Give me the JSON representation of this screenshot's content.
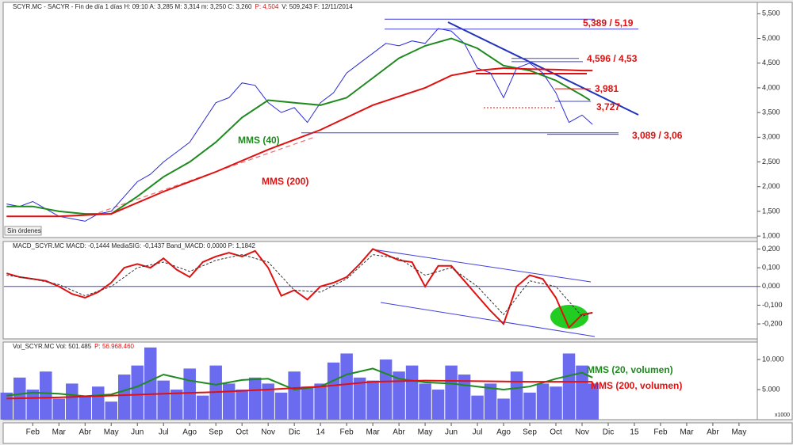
{
  "chart_data": [
    {
      "type": "line",
      "info": "SCYR.MC - SACYR - Fin de día 1 días H: 09:10 A: 3,285 M: 3,314 m: 3,250 C: 3,260",
      "info_red": "P: 4,504",
      "info_end": "V: 509,243 F: 12/11/2014",
      "status": "Sin órdenes",
      "xlim": [
        -0.1,
        28.7
      ],
      "ylim": [
        0.97,
        5.73
      ],
      "yticks": [
        {
          "value": 1,
          "label": "1,000"
        },
        {
          "value": 1.5,
          "label": "1,500"
        },
        {
          "value": 2,
          "label": "2,000"
        },
        {
          "value": 2.5,
          "label": "2,500"
        },
        {
          "value": 3,
          "label": "3,000"
        },
        {
          "value": 3.5,
          "label": "3,500"
        },
        {
          "value": 4,
          "label": "4,000"
        },
        {
          "value": 4.5,
          "label": "4,500"
        },
        {
          "value": 5,
          "label": "5,000"
        },
        {
          "value": 5.5,
          "label": "5,500"
        }
      ],
      "series": [
        {
          "color": "#2b2bd6",
          "x": [
            0,
            0.5,
            1,
            1.5,
            2,
            2.5,
            3,
            3.5,
            4,
            4.5,
            5,
            5.5,
            6,
            6.5,
            7,
            7.5,
            8,
            8.5,
            9,
            9.5,
            10,
            10.5,
            11,
            11.5,
            12,
            12.5,
            13,
            13.5,
            14,
            14.5,
            15,
            15.5,
            16,
            16.5,
            17,
            17.5,
            18,
            18.5,
            19,
            19.5,
            20,
            20.5,
            21,
            21.5,
            22,
            22.4
          ],
          "values": [
            1.65,
            1.6,
            1.7,
            1.55,
            1.4,
            1.35,
            1.3,
            1.45,
            1.5,
            1.8,
            2.1,
            2.25,
            2.5,
            2.7,
            2.9,
            3.3,
            3.7,
            3.8,
            4.1,
            4.05,
            3.7,
            3.5,
            3.6,
            3.3,
            3.7,
            3.9,
            4.3,
            4.5,
            4.7,
            4.9,
            4.85,
            4.95,
            4.9,
            5.2,
            5.15,
            4.9,
            4.4,
            4.3,
            3.8,
            4.4,
            4.5,
            4.3,
            3.9,
            3.3,
            3.45,
            3.26
          ]
        },
        {
          "name": "MMS (40)",
          "color": "#1e8a1e",
          "x": [
            0,
            1,
            2,
            3,
            4,
            5,
            6,
            7,
            8,
            9,
            10,
            11,
            12,
            13,
            14,
            15,
            16,
            17,
            18,
            19,
            20,
            21,
            22,
            22.3
          ],
          "values": [
            1.6,
            1.6,
            1.5,
            1.45,
            1.45,
            1.8,
            2.2,
            2.5,
            2.9,
            3.4,
            3.75,
            3.7,
            3.65,
            3.8,
            4.2,
            4.6,
            4.85,
            5.0,
            4.8,
            4.45,
            4.35,
            4.15,
            3.85,
            3.75
          ]
        },
        {
          "name": "MMS (200)",
          "color": "#e01010",
          "x": [
            0,
            2,
            4,
            6,
            8,
            10,
            12,
            14,
            16,
            17,
            18,
            19,
            20,
            21,
            22,
            22.4
          ],
          "values": [
            1.4,
            1.4,
            1.45,
            1.9,
            2.3,
            2.75,
            3.15,
            3.65,
            4.0,
            4.25,
            4.35,
            4.4,
            4.38,
            4.37,
            4.35,
            4.35
          ]
        }
      ],
      "annotations": [
        {
          "label": "5,389 / 5,19",
          "levels": [
            5.389,
            5.19
          ]
        },
        {
          "label": "4,596 / 4,53",
          "levels": [
            4.596,
            4.53
          ]
        },
        {
          "label": "3,981",
          "levels": [
            3.981
          ]
        },
        {
          "label": "3,727",
          "levels": [
            3.727
          ]
        },
        {
          "label": "3,089 / 3,06",
          "levels": [
            3.089,
            3.06
          ]
        }
      ]
    },
    {
      "type": "line",
      "info": "MACD_SCYR.MC MACD: -0,1444 MediaSIG: -0,1437 Band_MACD: 0,0000 P: 1,1842",
      "xlim": [
        -0.1,
        28.7
      ],
      "ylim": [
        -0.28,
        0.24
      ],
      "yticks": [
        {
          "value": 0.2,
          "label": "0,200"
        },
        {
          "value": 0.1,
          "label": "0,100"
        },
        {
          "value": 0,
          "label": "0,000"
        },
        {
          "value": -0.1,
          "label": "-0,100"
        },
        {
          "value": -0.2,
          "label": "-0,200"
        }
      ],
      "series": [
        {
          "color": "#e01010",
          "x": [
            0,
            0.5,
            1,
            1.5,
            2,
            2.5,
            3,
            3.5,
            4,
            4.5,
            5,
            5.5,
            6,
            6.5,
            7,
            7.5,
            8,
            8.5,
            9,
            9.5,
            10,
            10.5,
            11,
            11.5,
            12,
            12.5,
            13,
            13.5,
            14,
            14.5,
            15,
            15.5,
            16,
            16.5,
            17,
            17.5,
            18,
            18.5,
            19,
            19.5,
            20,
            20.5,
            21,
            21.5,
            22,
            22.4
          ],
          "values": [
            0.07,
            0.05,
            0.04,
            0.03,
            0.0,
            -0.04,
            -0.06,
            -0.03,
            0.02,
            0.1,
            0.12,
            0.1,
            0.15,
            0.09,
            0.05,
            0.13,
            0.16,
            0.18,
            0.16,
            0.19,
            0.1,
            -0.05,
            -0.02,
            -0.07,
            0.0,
            0.02,
            0.05,
            0.12,
            0.2,
            0.17,
            0.14,
            0.13,
            0.0,
            0.11,
            0.11,
            0.03,
            -0.05,
            -0.13,
            -0.2,
            0.0,
            0.06,
            0.04,
            -0.06,
            -0.22,
            -0.15,
            -0.14
          ]
        },
        {
          "color": "#333333",
          "dashed": true,
          "x": [
            0,
            1,
            2,
            3,
            4,
            5,
            6,
            7,
            8,
            9,
            10,
            11,
            12,
            13,
            14,
            15,
            16,
            17,
            18,
            19,
            20,
            21,
            22,
            22.4
          ],
          "values": [
            0.06,
            0.04,
            0.01,
            -0.05,
            0.0,
            0.1,
            0.13,
            0.08,
            0.14,
            0.17,
            0.13,
            -0.02,
            -0.03,
            0.04,
            0.17,
            0.15,
            0.06,
            0.1,
            0.0,
            -0.15,
            0.03,
            0.0,
            -0.16,
            -0.14
          ]
        }
      ]
    },
    {
      "type": "bar",
      "info": "Vol_SCYR.MC Vol: 501.485",
      "info_red": "P: 56.968.460",
      "unit_label": "x1000",
      "xlim": [
        -0.1,
        28.7
      ],
      "ylim": [
        0,
        12900
      ],
      "yticks": [
        {
          "value": 10000,
          "label": "10.000"
        },
        {
          "value": 5000,
          "label": "5.000"
        }
      ],
      "xticks": [
        {
          "value": 1,
          "label": "Feb"
        },
        {
          "value": 2,
          "label": "Mar"
        },
        {
          "value": 3,
          "label": "Abr"
        },
        {
          "value": 4,
          "label": "May"
        },
        {
          "value": 5,
          "label": "Jun"
        },
        {
          "value": 6,
          "label": "Jul"
        },
        {
          "value": 7,
          "label": "Ago"
        },
        {
          "value": 8,
          "label": "Sep"
        },
        {
          "value": 9,
          "label": "Oct"
        },
        {
          "value": 10,
          "label": "Nov"
        },
        {
          "value": 11,
          "label": "Dic"
        },
        {
          "value": 12,
          "label": "14"
        },
        {
          "value": 13,
          "label": "Feb"
        },
        {
          "value": 14,
          "label": "Mar"
        },
        {
          "value": 15,
          "label": "Abr"
        },
        {
          "value": 16,
          "label": "May"
        },
        {
          "value": 17,
          "label": "Jun"
        },
        {
          "value": 18,
          "label": "Jul"
        },
        {
          "value": 19,
          "label": "Ago"
        },
        {
          "value": 20,
          "label": "Sep"
        },
        {
          "value": 21,
          "label": "Oct"
        },
        {
          "value": 22,
          "label": "Nov"
        },
        {
          "value": 23,
          "label": "Dic"
        },
        {
          "value": 24,
          "label": "15"
        },
        {
          "value": 25,
          "label": "Feb"
        },
        {
          "value": 26,
          "label": "Mar"
        },
        {
          "value": 27,
          "label": "Abr"
        },
        {
          "value": 28,
          "label": "May"
        }
      ],
      "bars": {
        "color": "#6b6bf0",
        "x": [
          0,
          0.5,
          1,
          1.5,
          2,
          2.5,
          3,
          3.5,
          4,
          4.5,
          5,
          5.5,
          6,
          6.5,
          7,
          7.5,
          8,
          8.5,
          9,
          9.5,
          10,
          10.5,
          11,
          11.5,
          12,
          12.5,
          13,
          13.5,
          14,
          14.5,
          15,
          15.5,
          16,
          16.5,
          17,
          17.5,
          18,
          18.5,
          19,
          19.5,
          20,
          20.5,
          21,
          21.5,
          22,
          22.4
        ],
        "values": [
          4500,
          7000,
          5000,
          8000,
          3500,
          6000,
          4000,
          5500,
          3000,
          7500,
          9000,
          12000,
          6500,
          5000,
          8500,
          4000,
          9000,
          6000,
          5000,
          7000,
          6000,
          4500,
          8000,
          5500,
          6000,
          9500,
          11000,
          7000,
          6500,
          10000,
          8000,
          9000,
          6000,
          5000,
          9000,
          7500,
          4000,
          6000,
          3500,
          8000,
          4500,
          6000,
          5500,
          11000,
          9000,
          6000
        ]
      },
      "series": [
        {
          "name": "MMS (20, volumen)",
          "color": "#1e8a1e",
          "x": [
            0,
            1,
            2,
            3,
            4,
            5,
            6,
            7,
            8,
            9,
            10,
            11,
            12,
            13,
            14,
            15,
            16,
            17,
            18,
            19,
            20,
            21,
            22,
            22.4
          ],
          "values": [
            4000,
            4500,
            4300,
            3900,
            4200,
            5500,
            7500,
            6500,
            5800,
            6600,
            6800,
            5000,
            5500,
            7500,
            8500,
            6800,
            6200,
            6000,
            5500,
            5000,
            5500,
            6800,
            7800,
            7000
          ]
        },
        {
          "name": "MMS (200, volumen)",
          "color": "#e01010",
          "x": [
            0,
            2,
            4,
            6,
            8,
            10,
            12,
            14,
            16,
            18,
            20,
            22,
            22.4
          ],
          "values": [
            3500,
            3700,
            4000,
            4300,
            4600,
            5000,
            5500,
            6300,
            6500,
            6400,
            6300,
            6300,
            6300
          ]
        }
      ]
    }
  ]
}
